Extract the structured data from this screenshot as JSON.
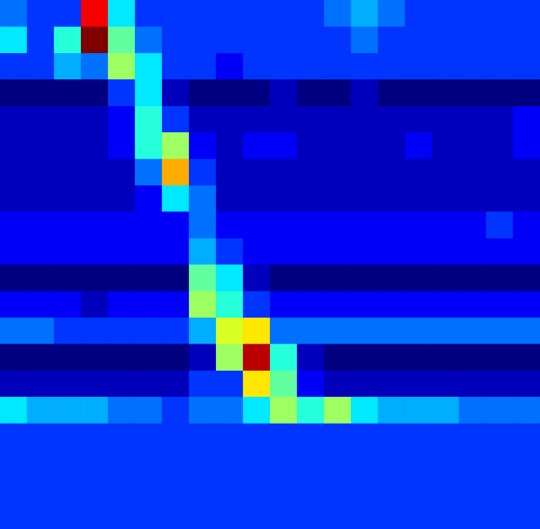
{
  "chart_data": {
    "type": "heatmap",
    "tick_labels": false,
    "grid": false,
    "cells": [
      [
        3.5,
        3,
        3,
        9,
        4.5,
        3,
        3,
        3,
        3,
        3,
        3,
        3,
        3.5,
        4,
        3.5,
        3,
        3,
        3,
        3,
        3
      ],
      [
        4.5,
        3,
        5,
        10,
        5.5,
        3.5,
        3,
        3,
        3,
        3,
        3,
        3,
        3,
        3.5,
        3,
        3,
        3,
        3,
        3,
        3
      ],
      [
        3,
        3,
        4,
        3.5,
        6,
        4.5,
        3,
        3,
        2.5,
        3,
        3,
        3,
        3,
        3,
        3,
        3,
        3,
        3,
        3,
        3
      ],
      [
        1.5,
        1.5,
        1.5,
        1.5,
        3,
        4.5,
        2,
        1.5,
        1.5,
        1.5,
        2,
        1.5,
        1.5,
        2,
        1.5,
        1.5,
        1.5,
        1.5,
        1.5,
        1.5
      ],
      [
        2,
        2,
        2,
        2,
        2.5,
        5,
        3,
        2,
        2,
        2,
        2,
        2,
        2,
        2,
        2,
        2,
        2,
        2,
        2,
        2.5
      ],
      [
        2,
        2,
        2,
        2,
        2.5,
        5,
        6,
        2.5,
        2,
        2.5,
        2.5,
        2,
        2,
        2,
        2,
        2.5,
        2,
        2,
        2,
        2.5
      ],
      [
        2,
        2,
        2,
        2,
        2,
        3.5,
        7.5,
        3,
        2,
        2,
        2,
        2,
        2,
        2,
        2,
        2,
        2,
        2,
        2,
        2
      ],
      [
        2,
        2,
        2,
        2,
        2,
        2.5,
        4.5,
        3.5,
        2,
        2,
        2,
        2,
        2,
        2,
        2,
        2,
        2,
        2,
        2,
        2
      ],
      [
        2.5,
        2.5,
        2.5,
        2.5,
        2.5,
        2.5,
        2.5,
        3.5,
        2.5,
        2.5,
        2.5,
        2.5,
        2.5,
        2.5,
        2.5,
        2.5,
        2.5,
        2.5,
        3,
        2.5
      ],
      [
        2.5,
        2.5,
        2.5,
        2.5,
        2.5,
        2.5,
        2.5,
        4,
        3,
        2.5,
        2.5,
        2.5,
        2.5,
        2.5,
        2.5,
        2.5,
        2.5,
        2.5,
        2.5,
        2.5
      ],
      [
        1.5,
        1.5,
        1.5,
        1.5,
        1.5,
        1.5,
        1.5,
        5.5,
        4.5,
        2,
        1.5,
        1.5,
        1.5,
        1.5,
        1.5,
        1.5,
        1.5,
        1.5,
        1.5,
        1.5
      ],
      [
        2.5,
        2.5,
        2.5,
        2,
        2.5,
        2.5,
        2.5,
        6,
        5,
        3,
        2.5,
        2.5,
        2.5,
        2.5,
        2.5,
        2.5,
        2.5,
        2.5,
        2.5,
        2.5
      ],
      [
        3.5,
        3.5,
        3,
        3,
        3,
        3,
        3,
        4,
        6.5,
        7,
        3.5,
        3.5,
        3.5,
        3.5,
        3.5,
        3.5,
        3.5,
        3.5,
        3.5,
        3.5
      ],
      [
        1.5,
        1.5,
        1.5,
        1.5,
        1.5,
        1.5,
        1.5,
        2,
        6,
        9.5,
        5,
        2,
        1.5,
        1.5,
        1.5,
        1.5,
        1.5,
        1.5,
        1.5,
        1.5
      ],
      [
        2,
        2,
        2,
        2,
        2,
        2,
        2,
        3,
        3,
        7,
        5.5,
        2.5,
        2,
        2,
        2,
        2,
        2,
        2,
        2,
        2
      ],
      [
        4.5,
        4,
        4,
        4,
        3.5,
        3.5,
        3,
        3.5,
        3.5,
        4.5,
        6,
        5,
        6,
        4.5,
        4,
        4,
        4,
        3.5,
        3.5,
        3.5
      ],
      [
        3,
        3,
        3,
        3,
        3,
        3,
        3,
        3,
        3,
        3,
        3,
        3,
        3,
        3,
        3,
        3,
        3,
        3,
        3,
        3
      ],
      [
        3,
        3,
        3,
        3,
        3,
        3,
        3,
        3,
        3,
        3,
        3,
        3,
        3,
        3,
        3,
        3,
        3,
        3,
        3,
        3
      ],
      [
        3,
        3,
        3,
        3,
        3,
        3,
        3,
        3,
        3,
        3,
        3,
        3,
        3,
        3,
        3,
        3,
        3,
        3,
        3,
        3
      ],
      [
        3,
        3,
        3,
        3,
        3,
        3,
        3,
        3,
        3,
        3,
        3,
        3,
        3,
        3,
        3,
        3,
        3,
        3,
        3,
        3
      ]
    ]
  }
}
